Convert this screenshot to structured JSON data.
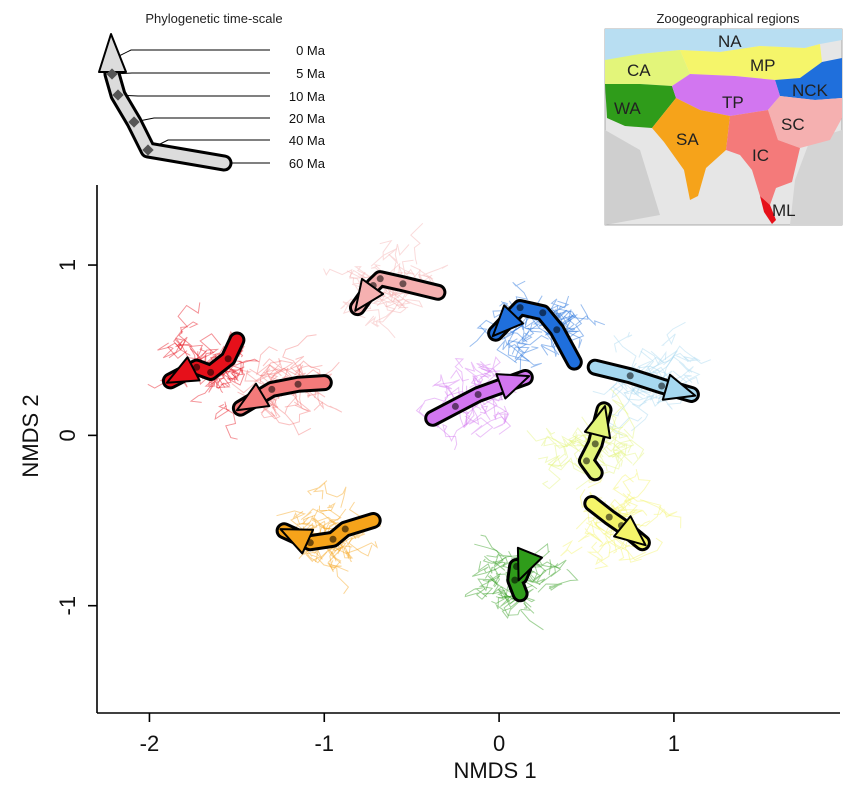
{
  "chart_data": {
    "type": "line",
    "title": "",
    "xlabel": "NMDS 1",
    "ylabel": "NMDS 2",
    "xlim": [
      -2.3,
      1.95
    ],
    "ylim": [
      -1.63,
      1.47
    ],
    "x_ticks": [
      -2,
      -1,
      0,
      1
    ],
    "y_ticks": [
      -1,
      0,
      1
    ],
    "x_tick_labels": [
      "-2",
      "-1",
      "0",
      "1"
    ],
    "y_tick_labels": [
      "-1",
      "0",
      "1"
    ],
    "series": [
      {
        "name": "NA",
        "color": "#a6d8f0",
        "points": [
          [
            0.55,
            0.4
          ],
          [
            0.75,
            0.35
          ],
          [
            0.93,
            0.29
          ],
          [
            1.1,
            0.24
          ]
        ]
      },
      {
        "name": "MP",
        "color": "#f5f56a",
        "points": [
          [
            0.53,
            -0.4
          ],
          [
            0.63,
            -0.48
          ],
          [
            0.7,
            -0.53
          ],
          [
            0.82,
            -0.63
          ]
        ]
      },
      {
        "name": "NCK",
        "color": "#1f6fdc",
        "points": [
          [
            0.43,
            0.43
          ],
          [
            0.33,
            0.62
          ],
          [
            0.25,
            0.72
          ],
          [
            0.12,
            0.75
          ],
          [
            -0.02,
            0.6
          ]
        ]
      },
      {
        "name": "SC",
        "color": "#f5b0b0",
        "points": [
          [
            -0.35,
            0.84
          ],
          [
            -0.55,
            0.89
          ],
          [
            -0.68,
            0.92
          ],
          [
            -0.72,
            0.88
          ],
          [
            -0.81,
            0.75
          ]
        ]
      },
      {
        "name": "TP",
        "color": "#d276f0",
        "points": [
          [
            -0.38,
            0.1
          ],
          [
            -0.25,
            0.17
          ],
          [
            -0.12,
            0.24
          ],
          [
            0.15,
            0.34
          ]
        ]
      },
      {
        "name": "CA",
        "color": "#e3f57a",
        "points": [
          [
            0.55,
            -0.22
          ],
          [
            0.5,
            -0.15
          ],
          [
            0.55,
            -0.05
          ],
          [
            0.6,
            0.15
          ]
        ]
      },
      {
        "name": "IC",
        "color": "#f47a7a",
        "points": [
          [
            -1.0,
            0.31
          ],
          [
            -1.15,
            0.3
          ],
          [
            -1.3,
            0.27
          ],
          [
            -1.48,
            0.16
          ]
        ]
      },
      {
        "name": "ML",
        "color": "#e6101a",
        "points": [
          [
            -1.5,
            0.56
          ],
          [
            -1.55,
            0.45
          ],
          [
            -1.65,
            0.37
          ],
          [
            -1.73,
            0.4
          ],
          [
            -1.88,
            0.32
          ]
        ]
      },
      {
        "name": "SA",
        "color": "#f6a31a",
        "points": [
          [
            -0.72,
            -0.5
          ],
          [
            -0.88,
            -0.55
          ],
          [
            -0.95,
            -0.61
          ],
          [
            -1.08,
            -0.63
          ],
          [
            -1.23,
            -0.56
          ]
        ]
      },
      {
        "name": "WA",
        "color": "#2f9c1a",
        "points": [
          [
            0.12,
            -0.93
          ],
          [
            0.09,
            -0.85
          ],
          [
            0.1,
            -0.77
          ],
          [
            0.14,
            -0.78
          ],
          [
            0.12,
            -0.83
          ]
        ]
      }
    ]
  },
  "legend": {
    "title": "Phylogenetic time-scale",
    "labels": [
      "0 Ma",
      "5 Ma",
      "10 Ma",
      "20 Ma",
      "40 Ma",
      "60 Ma"
    ]
  },
  "inset": {
    "title": "Zoogeographical regions",
    "regions": [
      {
        "label": "NA",
        "color": "#b8def2"
      },
      {
        "label": "CA",
        "color": "#e3f57a"
      },
      {
        "label": "MP",
        "color": "#f5f56a"
      },
      {
        "label": "NCK",
        "color": "#1f6fdc"
      },
      {
        "label": "WA",
        "color": "#2f9c1a"
      },
      {
        "label": "TP",
        "color": "#d276f0"
      },
      {
        "label": "SC",
        "color": "#f5b0b0"
      },
      {
        "label": "SA",
        "color": "#f6a31a"
      },
      {
        "label": "IC",
        "color": "#f47a7a"
      },
      {
        "label": "ML",
        "color": "#e6101a"
      }
    ]
  }
}
